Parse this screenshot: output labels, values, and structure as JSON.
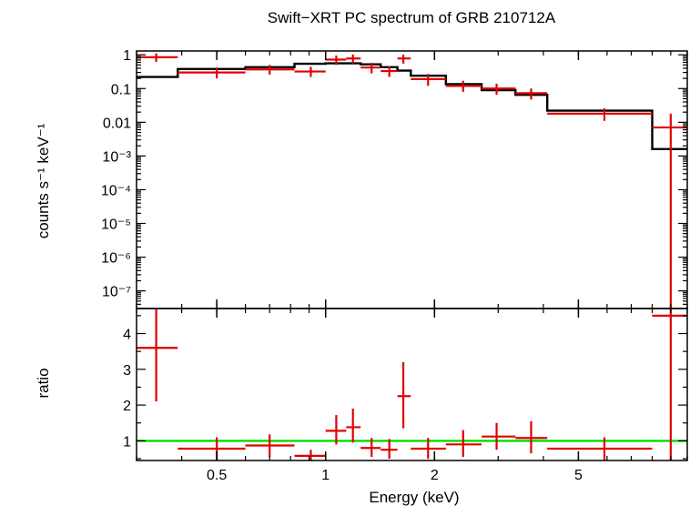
{
  "chart_data": [
    {
      "type": "scatter",
      "panel": "spectrum",
      "title": "Swift−XRT PC spectrum of GRB 210712A",
      "ylabel": "counts s⁻¹ keV⁻¹",
      "xscale": "log",
      "yscale": "log",
      "xlim": [
        0.3,
        10
      ],
      "ylim": [
        3e-08,
        1.3
      ],
      "yticks": [
        {
          "value": 1,
          "label": "1"
        },
        {
          "value": 0.1,
          "label": "0.1"
        },
        {
          "value": 0.01,
          "label": "0.01"
        },
        {
          "value": 0.001,
          "label": "10⁻³"
        },
        {
          "value": 0.0001,
          "label": "10⁻⁴"
        },
        {
          "value": 1e-05,
          "label": "10⁻⁵"
        },
        {
          "value": 1e-06,
          "label": "10⁻⁶"
        },
        {
          "value": 1e-07,
          "label": "10⁻⁷"
        }
      ],
      "data_points": [
        {
          "x": 0.34,
          "xlo": 0.3,
          "xhi": 0.39,
          "y": 0.85,
          "ylo": 0.62,
          "yhi": 1.1
        },
        {
          "x": 0.5,
          "xlo": 0.39,
          "xhi": 0.6,
          "y": 0.3,
          "ylo": 0.2,
          "yhi": 0.42
        },
        {
          "x": 0.7,
          "xlo": 0.6,
          "xhi": 0.82,
          "y": 0.37,
          "ylo": 0.26,
          "yhi": 0.5
        },
        {
          "x": 0.91,
          "xlo": 0.82,
          "xhi": 1.0,
          "y": 0.32,
          "ylo": 0.22,
          "yhi": 0.44
        },
        {
          "x": 1.07,
          "xlo": 1.0,
          "xhi": 1.14,
          "y": 0.72,
          "ylo": 0.5,
          "yhi": 0.95
        },
        {
          "x": 1.19,
          "xlo": 1.14,
          "xhi": 1.25,
          "y": 0.78,
          "ylo": 0.55,
          "yhi": 1.02
        },
        {
          "x": 1.34,
          "xlo": 1.25,
          "xhi": 1.42,
          "y": 0.42,
          "ylo": 0.28,
          "yhi": 0.58
        },
        {
          "x": 1.5,
          "xlo": 1.42,
          "xhi": 1.58,
          "y": 0.33,
          "ylo": 0.22,
          "yhi": 0.46
        },
        {
          "x": 1.64,
          "xlo": 1.58,
          "xhi": 1.72,
          "y": 0.78,
          "ylo": 0.55,
          "yhi": 1.02
        },
        {
          "x": 1.92,
          "xlo": 1.72,
          "xhi": 2.15,
          "y": 0.19,
          "ylo": 0.12,
          "yhi": 0.27
        },
        {
          "x": 2.4,
          "xlo": 2.15,
          "xhi": 2.7,
          "y": 0.12,
          "ylo": 0.08,
          "yhi": 0.17
        },
        {
          "x": 2.97,
          "xlo": 2.7,
          "xhi": 3.35,
          "y": 0.1,
          "ylo": 0.065,
          "yhi": 0.14
        },
        {
          "x": 3.7,
          "xlo": 3.35,
          "xhi": 4.1,
          "y": 0.073,
          "ylo": 0.047,
          "yhi": 0.1
        },
        {
          "x": 5.9,
          "xlo": 4.1,
          "xhi": 8.0,
          "y": 0.018,
          "ylo": 0.011,
          "yhi": 0.026
        },
        {
          "x": 9.0,
          "xlo": 8.0,
          "xhi": 10.0,
          "y": 0.007,
          "ylo": 3e-08,
          "yhi": 0.018
        }
      ],
      "model_steps": [
        {
          "xlo": 0.3,
          "xhi": 0.39,
          "y": 0.22
        },
        {
          "xlo": 0.39,
          "xhi": 0.6,
          "y": 0.38
        },
        {
          "xlo": 0.6,
          "xhi": 0.82,
          "y": 0.43
        },
        {
          "xlo": 0.82,
          "xhi": 1.0,
          "y": 0.54
        },
        {
          "xlo": 1.0,
          "xhi": 1.14,
          "y": 0.56
        },
        {
          "xlo": 1.14,
          "xhi": 1.25,
          "y": 0.56
        },
        {
          "xlo": 1.25,
          "xhi": 1.42,
          "y": 0.52
        },
        {
          "xlo": 1.42,
          "xhi": 1.58,
          "y": 0.43
        },
        {
          "xlo": 1.58,
          "xhi": 1.72,
          "y": 0.34
        },
        {
          "xlo": 1.72,
          "xhi": 2.15,
          "y": 0.24
        },
        {
          "xlo": 2.15,
          "xhi": 2.7,
          "y": 0.135
        },
        {
          "xlo": 2.7,
          "xhi": 3.35,
          "y": 0.09
        },
        {
          "xlo": 3.35,
          "xhi": 4.1,
          "y": 0.065
        },
        {
          "xlo": 4.1,
          "xhi": 8.0,
          "y": 0.022
        },
        {
          "xlo": 8.0,
          "xhi": 10.0,
          "y": 0.0016
        }
      ],
      "colors": {
        "data": "#e00000",
        "model": "#000000"
      }
    },
    {
      "type": "scatter",
      "panel": "ratio",
      "ylabel": "ratio",
      "xlabel": "Energy (keV)",
      "xscale": "log",
      "xlim": [
        0.3,
        10
      ],
      "ylim": [
        0.45,
        4.7
      ],
      "yticks": [
        1,
        2,
        3,
        4
      ],
      "xticks": [
        {
          "value": 0.5,
          "label": "0.5"
        },
        {
          "value": 1,
          "label": "1"
        },
        {
          "value": 2,
          "label": "2"
        },
        {
          "value": 5,
          "label": "5"
        }
      ],
      "reference_line": 1,
      "data_points": [
        {
          "x": 0.34,
          "xlo": 0.3,
          "xhi": 0.39,
          "y": 3.6,
          "ylo": 2.1,
          "yhi": 4.7
        },
        {
          "x": 0.5,
          "xlo": 0.39,
          "xhi": 0.6,
          "y": 0.78,
          "ylo": 0.45,
          "yhi": 1.1
        },
        {
          "x": 0.7,
          "xlo": 0.6,
          "xhi": 0.82,
          "y": 0.87,
          "ylo": 0.55,
          "yhi": 1.18
        },
        {
          "x": 0.91,
          "xlo": 0.82,
          "xhi": 1.0,
          "y": 0.58,
          "ylo": 0.45,
          "yhi": 0.75
        },
        {
          "x": 1.07,
          "xlo": 1.0,
          "xhi": 1.14,
          "y": 1.28,
          "ylo": 0.9,
          "yhi": 1.72
        },
        {
          "x": 1.19,
          "xlo": 1.14,
          "xhi": 1.25,
          "y": 1.38,
          "ylo": 0.95,
          "yhi": 1.9
        },
        {
          "x": 1.34,
          "xlo": 1.25,
          "xhi": 1.42,
          "y": 0.8,
          "ylo": 0.55,
          "yhi": 1.08
        },
        {
          "x": 1.5,
          "xlo": 1.42,
          "xhi": 1.58,
          "y": 0.75,
          "ylo": 0.5,
          "yhi": 1.05
        },
        {
          "x": 1.64,
          "xlo": 1.58,
          "xhi": 1.72,
          "y": 2.25,
          "ylo": 1.35,
          "yhi": 3.2
        },
        {
          "x": 1.92,
          "xlo": 1.72,
          "xhi": 2.15,
          "y": 0.78,
          "ylo": 0.5,
          "yhi": 1.08
        },
        {
          "x": 2.4,
          "xlo": 2.15,
          "xhi": 2.7,
          "y": 0.9,
          "ylo": 0.55,
          "yhi": 1.3
        },
        {
          "x": 2.97,
          "xlo": 2.7,
          "xhi": 3.35,
          "y": 1.12,
          "ylo": 0.75,
          "yhi": 1.5
        },
        {
          "x": 3.7,
          "xlo": 3.35,
          "xhi": 4.1,
          "y": 1.08,
          "ylo": 0.65,
          "yhi": 1.55
        },
        {
          "x": 5.9,
          "xlo": 4.1,
          "xhi": 8.0,
          "y": 0.78,
          "ylo": 0.45,
          "yhi": 1.1
        },
        {
          "x": 9.0,
          "xlo": 8.0,
          "xhi": 10.0,
          "y": 4.5,
          "ylo": 0.45,
          "yhi": 4.7
        }
      ],
      "colors": {
        "data": "#e00000",
        "reference_line": "#00dd00"
      }
    }
  ]
}
